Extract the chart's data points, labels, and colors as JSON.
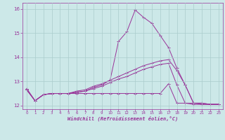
{
  "xlabel": "Windchill (Refroidissement éolien,°C)",
  "bg_color": "#cce8e8",
  "grid_color": "#aacccc",
  "line_color": "#993399",
  "xlim": [
    -0.5,
    23.5
  ],
  "ylim": [
    11.85,
    16.25
  ],
  "xticks": [
    0,
    1,
    2,
    3,
    4,
    5,
    6,
    7,
    8,
    9,
    10,
    11,
    12,
    13,
    14,
    15,
    16,
    17,
    18,
    19,
    20,
    21,
    22,
    23
  ],
  "yticks": [
    12,
    13,
    14,
    15,
    16
  ],
  "series": {
    "line1_spike": {
      "x": [
        0,
        1,
        2,
        3,
        4,
        5,
        6,
        7,
        8,
        9,
        10,
        11,
        12,
        13,
        14,
        15,
        16,
        17,
        18,
        19,
        20,
        21,
        22,
        23
      ],
      "y": [
        12.7,
        12.2,
        12.45,
        12.5,
        12.5,
        12.5,
        12.55,
        12.6,
        12.75,
        12.85,
        13.05,
        14.65,
        15.05,
        15.95,
        15.65,
        15.4,
        14.9,
        14.4,
        13.55,
        12.85,
        12.1,
        12.1,
        12.05,
        12.05
      ]
    },
    "line2_gradual": {
      "x": [
        0,
        1,
        2,
        3,
        4,
        5,
        6,
        7,
        8,
        9,
        10,
        11,
        12,
        13,
        14,
        15,
        16,
        17,
        18,
        19,
        20,
        21,
        22,
        23
      ],
      "y": [
        12.7,
        12.2,
        12.45,
        12.5,
        12.5,
        12.5,
        12.6,
        12.65,
        12.8,
        12.9,
        13.05,
        13.2,
        13.35,
        13.5,
        13.65,
        13.75,
        13.85,
        13.9,
        13.45,
        12.85,
        12.1,
        12.1,
        12.05,
        12.05
      ]
    },
    "line3_flat": {
      "x": [
        0,
        1,
        2,
        3,
        4,
        5,
        6,
        7,
        8,
        9,
        10,
        11,
        12,
        13,
        14,
        15,
        16,
        17,
        18,
        19,
        20,
        21,
        22,
        23
      ],
      "y": [
        12.65,
        12.2,
        12.45,
        12.5,
        12.5,
        12.5,
        12.5,
        12.5,
        12.5,
        12.5,
        12.5,
        12.5,
        12.5,
        12.5,
        12.5,
        12.5,
        12.5,
        12.9,
        12.1,
        12.1,
        12.05,
        12.05,
        12.05,
        12.05
      ]
    },
    "line4_mid": {
      "x": [
        0,
        1,
        2,
        3,
        4,
        5,
        6,
        7,
        8,
        9,
        10,
        11,
        12,
        13,
        14,
        15,
        16,
        17,
        18,
        19,
        20,
        21,
        22,
        23
      ],
      "y": [
        12.65,
        12.2,
        12.45,
        12.5,
        12.5,
        12.5,
        12.55,
        12.6,
        12.7,
        12.8,
        12.95,
        13.1,
        13.2,
        13.35,
        13.5,
        13.6,
        13.7,
        13.75,
        12.85,
        12.1,
        12.1,
        12.05,
        12.05,
        12.05
      ]
    }
  }
}
